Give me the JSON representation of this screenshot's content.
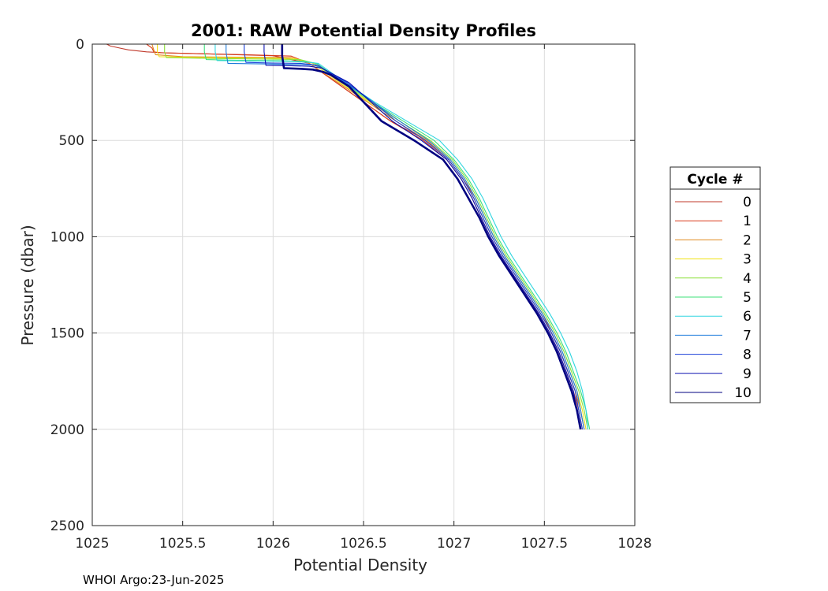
{
  "chart_data": {
    "type": "line",
    "title": "2001: RAW Potential Density Profiles",
    "xlabel": "Potential Density",
    "ylabel": "Pressure (dbar)",
    "xlim": [
      1025,
      1028
    ],
    "ylim": [
      0,
      2500
    ],
    "y_reversed": true,
    "grid": true,
    "xticks": [
      "1025",
      "1025.5",
      "1026",
      "1026.5",
      "1027",
      "1027.5",
      "1028"
    ],
    "yticks": [
      "0",
      "500",
      "1000",
      "1500",
      "2000",
      "2500"
    ],
    "legend": {
      "title": "Cycle #",
      "placement": "outside-right"
    },
    "series": [
      {
        "name": "0",
        "color": "#C0392B",
        "points": [
          [
            1025.08,
            0
          ],
          [
            1025.1,
            10
          ],
          [
            1025.15,
            20
          ],
          [
            1025.2,
            30
          ],
          [
            1025.3,
            40
          ],
          [
            1025.4,
            45
          ],
          [
            1025.6,
            50
          ],
          [
            1025.8,
            55
          ],
          [
            1026.0,
            60
          ],
          [
            1026.2,
            100
          ],
          [
            1026.35,
            200
          ],
          [
            1026.5,
            300
          ],
          [
            1026.65,
            400
          ],
          [
            1026.85,
            500
          ],
          [
            1026.97,
            600
          ],
          [
            1027.05,
            700
          ],
          [
            1027.12,
            800
          ],
          [
            1027.17,
            900
          ],
          [
            1027.22,
            1000
          ],
          [
            1027.28,
            1100
          ],
          [
            1027.35,
            1200
          ],
          [
            1027.42,
            1300
          ],
          [
            1027.49,
            1400
          ],
          [
            1027.54,
            1500
          ],
          [
            1027.59,
            1600
          ],
          [
            1027.63,
            1700
          ],
          [
            1027.67,
            1800
          ],
          [
            1027.7,
            1900
          ],
          [
            1027.72,
            2000
          ]
        ]
      },
      {
        "name": "1",
        "color": "#D93A1A",
        "points": [
          [
            1025.3,
            0
          ],
          [
            1025.33,
            20
          ],
          [
            1025.34,
            40
          ],
          [
            1025.38,
            45
          ],
          [
            1025.6,
            50
          ],
          [
            1025.85,
            55
          ],
          [
            1026.1,
            62
          ],
          [
            1026.2,
            100
          ],
          [
            1026.35,
            200
          ],
          [
            1026.5,
            300
          ],
          [
            1026.65,
            400
          ],
          [
            1026.83,
            500
          ],
          [
            1026.96,
            600
          ],
          [
            1027.04,
            700
          ],
          [
            1027.1,
            800
          ],
          [
            1027.15,
            900
          ],
          [
            1027.2,
            1000
          ],
          [
            1027.26,
            1100
          ],
          [
            1027.33,
            1200
          ],
          [
            1027.4,
            1300
          ],
          [
            1027.47,
            1400
          ],
          [
            1027.53,
            1500
          ],
          [
            1027.58,
            1600
          ],
          [
            1027.62,
            1700
          ],
          [
            1027.66,
            1800
          ],
          [
            1027.69,
            1900
          ],
          [
            1027.71,
            2000
          ]
        ]
      },
      {
        "name": "2",
        "color": "#E08A1E",
        "points": [
          [
            1025.33,
            0
          ],
          [
            1025.34,
            30
          ],
          [
            1025.35,
            55
          ],
          [
            1025.5,
            65
          ],
          [
            1025.8,
            68
          ],
          [
            1026.1,
            70
          ],
          [
            1026.2,
            100
          ],
          [
            1026.36,
            200
          ],
          [
            1026.52,
            300
          ],
          [
            1026.68,
            400
          ],
          [
            1026.85,
            500
          ],
          [
            1026.97,
            600
          ],
          [
            1027.05,
            700
          ],
          [
            1027.11,
            800
          ],
          [
            1027.16,
            900
          ],
          [
            1027.21,
            1000
          ],
          [
            1027.27,
            1100
          ],
          [
            1027.34,
            1200
          ],
          [
            1027.41,
            1300
          ],
          [
            1027.48,
            1400
          ],
          [
            1027.54,
            1500
          ],
          [
            1027.59,
            1600
          ],
          [
            1027.63,
            1700
          ],
          [
            1027.67,
            1800
          ],
          [
            1027.7,
            1900
          ],
          [
            1027.72,
            2000
          ]
        ]
      },
      {
        "name": "3",
        "color": "#F1E21A",
        "points": [
          [
            1025.36,
            0
          ],
          [
            1025.36,
            40
          ],
          [
            1025.37,
            65
          ],
          [
            1025.6,
            70
          ],
          [
            1025.9,
            72
          ],
          [
            1026.12,
            75
          ],
          [
            1026.22,
            100
          ],
          [
            1026.37,
            200
          ],
          [
            1026.53,
            300
          ],
          [
            1026.7,
            400
          ],
          [
            1026.86,
            500
          ],
          [
            1026.98,
            600
          ],
          [
            1027.06,
            700
          ],
          [
            1027.12,
            800
          ],
          [
            1027.17,
            900
          ],
          [
            1027.22,
            1000
          ],
          [
            1027.28,
            1100
          ],
          [
            1027.35,
            1200
          ],
          [
            1027.42,
            1300
          ],
          [
            1027.49,
            1400
          ],
          [
            1027.55,
            1500
          ],
          [
            1027.6,
            1600
          ],
          [
            1027.64,
            1700
          ],
          [
            1027.68,
            1800
          ],
          [
            1027.71,
            1900
          ],
          [
            1027.73,
            2000
          ]
        ]
      },
      {
        "name": "4",
        "color": "#8EE03C",
        "points": [
          [
            1025.4,
            0
          ],
          [
            1025.4,
            40
          ],
          [
            1025.41,
            70
          ],
          [
            1025.7,
            75
          ],
          [
            1026.0,
            78
          ],
          [
            1026.15,
            80
          ],
          [
            1026.23,
            100
          ],
          [
            1026.38,
            200
          ],
          [
            1026.54,
            300
          ],
          [
            1026.7,
            400
          ],
          [
            1026.87,
            500
          ],
          [
            1026.99,
            600
          ],
          [
            1027.07,
            700
          ],
          [
            1027.13,
            800
          ],
          [
            1027.18,
            900
          ],
          [
            1027.23,
            1000
          ],
          [
            1027.29,
            1100
          ],
          [
            1027.36,
            1200
          ],
          [
            1027.43,
            1300
          ],
          [
            1027.5,
            1400
          ],
          [
            1027.56,
            1500
          ],
          [
            1027.61,
            1600
          ],
          [
            1027.65,
            1700
          ],
          [
            1027.69,
            1800
          ],
          [
            1027.72,
            1900
          ],
          [
            1027.74,
            2000
          ]
        ]
      },
      {
        "name": "5",
        "color": "#3CE07A",
        "points": [
          [
            1025.62,
            0
          ],
          [
            1025.62,
            40
          ],
          [
            1025.63,
            80
          ],
          [
            1025.8,
            84
          ],
          [
            1026.05,
            86
          ],
          [
            1026.18,
            90
          ],
          [
            1026.24,
            100
          ],
          [
            1026.39,
            200
          ],
          [
            1026.55,
            300
          ],
          [
            1026.72,
            400
          ],
          [
            1026.89,
            500
          ],
          [
            1027.0,
            600
          ],
          [
            1027.08,
            700
          ],
          [
            1027.14,
            800
          ],
          [
            1027.19,
            900
          ],
          [
            1027.24,
            1000
          ],
          [
            1027.3,
            1100
          ],
          [
            1027.37,
            1200
          ],
          [
            1027.44,
            1300
          ],
          [
            1027.51,
            1400
          ],
          [
            1027.57,
            1500
          ],
          [
            1027.62,
            1600
          ],
          [
            1027.66,
            1700
          ],
          [
            1027.7,
            1800
          ],
          [
            1027.73,
            1900
          ],
          [
            1027.75,
            2000
          ]
        ]
      },
      {
        "name": "6",
        "color": "#30D5E0",
        "points": [
          [
            1025.68,
            0
          ],
          [
            1025.68,
            40
          ],
          [
            1025.69,
            85
          ],
          [
            1025.9,
            88
          ],
          [
            1026.1,
            90
          ],
          [
            1026.2,
            95
          ],
          [
            1026.25,
            100
          ],
          [
            1026.4,
            200
          ],
          [
            1026.56,
            300
          ],
          [
            1026.74,
            400
          ],
          [
            1026.92,
            500
          ],
          [
            1027.02,
            600
          ],
          [
            1027.1,
            700
          ],
          [
            1027.16,
            800
          ],
          [
            1027.21,
            900
          ],
          [
            1027.26,
            1000
          ],
          [
            1027.32,
            1100
          ],
          [
            1027.39,
            1200
          ],
          [
            1027.46,
            1300
          ],
          [
            1027.53,
            1400
          ],
          [
            1027.59,
            1500
          ],
          [
            1027.64,
            1600
          ],
          [
            1027.68,
            1700
          ],
          [
            1027.71,
            1800
          ],
          [
            1027.73,
            1900
          ],
          [
            1027.74,
            2000
          ]
        ]
      },
      {
        "name": "7",
        "color": "#1E7BDC",
        "points": [
          [
            1025.74,
            0
          ],
          [
            1025.74,
            40
          ],
          [
            1025.75,
            100
          ],
          [
            1025.9,
            102
          ],
          [
            1026.1,
            105
          ],
          [
            1026.22,
            108
          ],
          [
            1026.26,
            120
          ],
          [
            1026.4,
            200
          ],
          [
            1026.55,
            300
          ],
          [
            1026.7,
            400
          ],
          [
            1026.86,
            500
          ],
          [
            1026.98,
            600
          ],
          [
            1027.06,
            700
          ],
          [
            1027.12,
            800
          ],
          [
            1027.17,
            900
          ],
          [
            1027.22,
            1000
          ],
          [
            1027.28,
            1100
          ],
          [
            1027.35,
            1200
          ],
          [
            1027.42,
            1300
          ],
          [
            1027.49,
            1400
          ],
          [
            1027.55,
            1500
          ],
          [
            1027.6,
            1600
          ],
          [
            1027.64,
            1700
          ],
          [
            1027.68,
            1800
          ],
          [
            1027.7,
            1900
          ],
          [
            1027.72,
            2000
          ]
        ]
      },
      {
        "name": "8",
        "color": "#1A3FD8",
        "points": [
          [
            1025.84,
            0
          ],
          [
            1025.84,
            40
          ],
          [
            1025.85,
            95
          ],
          [
            1026.0,
            98
          ],
          [
            1026.15,
            100
          ],
          [
            1026.25,
            110
          ],
          [
            1026.28,
            130
          ],
          [
            1026.41,
            200
          ],
          [
            1026.55,
            300
          ],
          [
            1026.68,
            400
          ],
          [
            1026.84,
            500
          ],
          [
            1026.97,
            600
          ],
          [
            1027.05,
            700
          ],
          [
            1027.11,
            800
          ],
          [
            1027.16,
            900
          ],
          [
            1027.21,
            1000
          ],
          [
            1027.27,
            1100
          ],
          [
            1027.34,
            1200
          ],
          [
            1027.41,
            1300
          ],
          [
            1027.48,
            1400
          ],
          [
            1027.54,
            1500
          ],
          [
            1027.59,
            1600
          ],
          [
            1027.63,
            1700
          ],
          [
            1027.67,
            1800
          ],
          [
            1027.69,
            1900
          ],
          [
            1027.71,
            2000
          ]
        ]
      },
      {
        "name": "9",
        "color": "#0A10B0",
        "points": [
          [
            1025.95,
            0
          ],
          [
            1025.95,
            40
          ],
          [
            1025.96,
            110
          ],
          [
            1026.1,
            112
          ],
          [
            1026.2,
            115
          ],
          [
            1026.27,
            125
          ],
          [
            1026.3,
            140
          ],
          [
            1026.42,
            200
          ],
          [
            1026.54,
            300
          ],
          [
            1026.66,
            400
          ],
          [
            1026.82,
            500
          ],
          [
            1026.96,
            600
          ],
          [
            1027.04,
            700
          ],
          [
            1027.1,
            800
          ],
          [
            1027.15,
            900
          ],
          [
            1027.2,
            1000
          ],
          [
            1027.26,
            1100
          ],
          [
            1027.33,
            1200
          ],
          [
            1027.4,
            1300
          ],
          [
            1027.47,
            1400
          ],
          [
            1027.53,
            1500
          ],
          [
            1027.58,
            1600
          ],
          [
            1027.62,
            1700
          ],
          [
            1027.66,
            1800
          ],
          [
            1027.68,
            1900
          ],
          [
            1027.7,
            2000
          ]
        ]
      },
      {
        "name": "10",
        "color": "#000080",
        "points": [
          [
            1026.05,
            0
          ],
          [
            1026.05,
            60
          ],
          [
            1026.06,
            125
          ],
          [
            1026.15,
            128
          ],
          [
            1026.22,
            132
          ],
          [
            1026.28,
            145
          ],
          [
            1026.32,
            160
          ],
          [
            1026.42,
            220
          ],
          [
            1026.5,
            300
          ],
          [
            1026.6,
            400
          ],
          [
            1026.78,
            500
          ],
          [
            1026.94,
            600
          ],
          [
            1027.02,
            700
          ],
          [
            1027.08,
            800
          ],
          [
            1027.14,
            900
          ],
          [
            1027.19,
            1000
          ],
          [
            1027.25,
            1100
          ],
          [
            1027.32,
            1200
          ],
          [
            1027.39,
            1300
          ],
          [
            1027.46,
            1400
          ],
          [
            1027.52,
            1500
          ],
          [
            1027.57,
            1600
          ],
          [
            1027.61,
            1700
          ],
          [
            1027.65,
            1800
          ],
          [
            1027.68,
            1900
          ],
          [
            1027.7,
            2000
          ]
        ]
      }
    ]
  },
  "footer": "WHOI Argo:23-Jun-2025"
}
